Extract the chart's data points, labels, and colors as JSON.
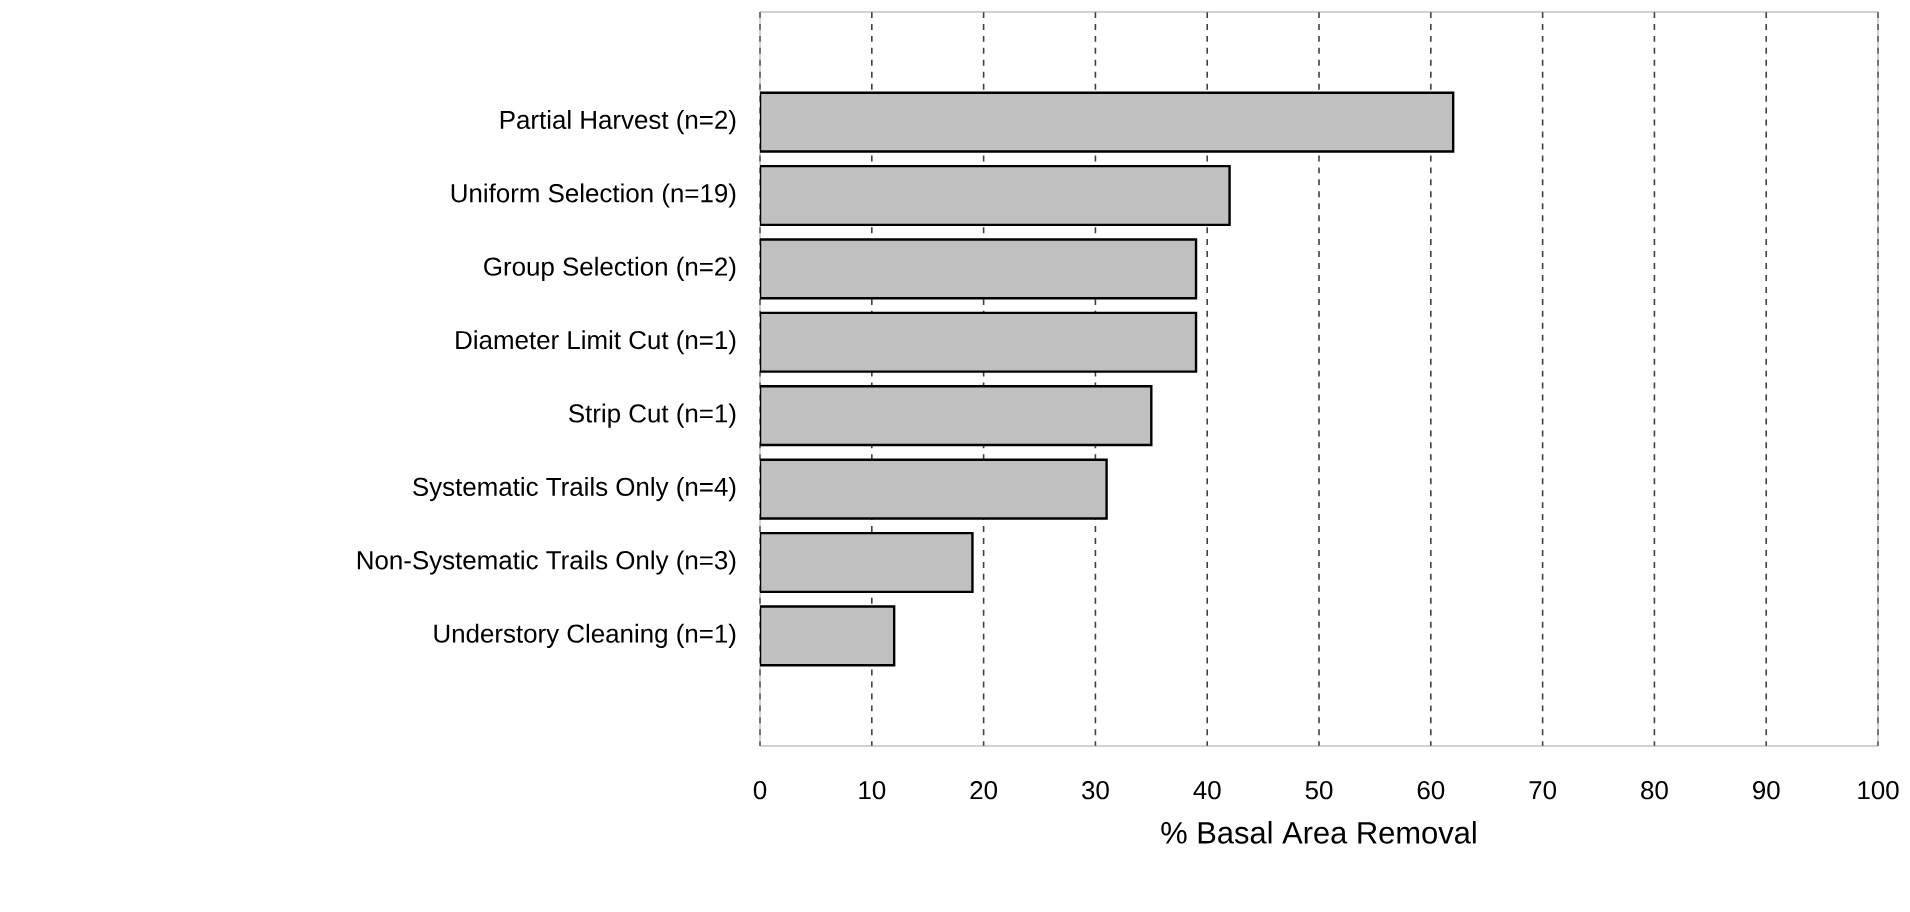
{
  "chart_data": {
    "type": "bar",
    "orientation": "horizontal",
    "xlabel": "% Basal Area Removal",
    "categories": [
      "Partial Harvest (n=2)",
      "Uniform Selection (n=19)",
      "Group Selection (n=2)",
      "Diameter Limit Cut (n=1)",
      "Strip Cut (n=1)",
      "Systematic Trails Only (n=4)",
      "Non-Systematic Trails Only (n=3)",
      "Understory Cleaning (n=1)"
    ],
    "values": [
      62,
      42,
      39,
      39,
      35,
      31,
      19,
      12
    ],
    "color": "#c0c0c0",
    "xlim": [
      0,
      100
    ],
    "xticks": [
      0,
      10,
      20,
      30,
      40,
      50,
      60,
      70,
      80,
      90,
      100
    ],
    "grid": "x"
  }
}
